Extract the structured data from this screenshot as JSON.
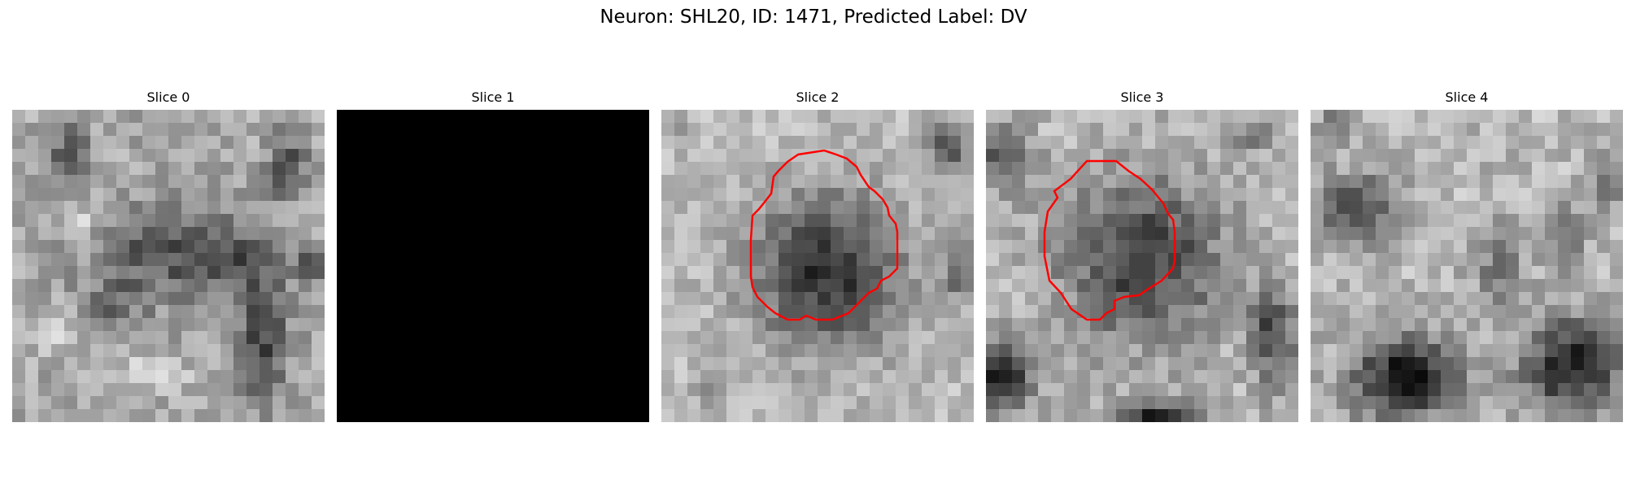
{
  "figure": {
    "title": "Neuron: SHL20, ID: 1471, Predicted Label: DV"
  },
  "panels": [
    {
      "title": "Slice 0",
      "contour": false,
      "blank": false,
      "blobs": [
        [
          0.5,
          0.45,
          0.22,
          0.15,
          0.35
        ],
        [
          0.8,
          0.72,
          0.08,
          0.22,
          0.4
        ],
        [
          0.18,
          0.12,
          0.06,
          0.1,
          0.3
        ],
        [
          0.88,
          0.18,
          0.06,
          0.1,
          0.35
        ],
        [
          0.32,
          0.62,
          0.1,
          0.08,
          0.2
        ],
        [
          0.72,
          0.48,
          0.1,
          0.08,
          0.25
        ],
        [
          0.95,
          0.5,
          0.06,
          0.06,
          0.3
        ],
        [
          0.22,
          0.35,
          0.05,
          0.05,
          -0.2
        ],
        [
          0.12,
          0.7,
          0.08,
          0.06,
          -0.15
        ],
        [
          0.45,
          0.85,
          0.1,
          0.06,
          -0.18
        ]
      ],
      "base": 0.66,
      "noise": 0.13
    },
    {
      "title": "Slice 1",
      "contour": false,
      "blank": true,
      "blobs": [],
      "base": 0.0,
      "noise": 0.0
    },
    {
      "title": "Slice 2",
      "contour": true,
      "blank": false,
      "blobs": [
        [
          0.53,
          0.52,
          0.24,
          0.24,
          0.55
        ],
        [
          0.92,
          0.12,
          0.06,
          0.08,
          0.4
        ],
        [
          0.95,
          0.5,
          0.05,
          0.1,
          0.35
        ],
        [
          0.05,
          0.05,
          0.05,
          0.05,
          0.2
        ],
        [
          0.15,
          0.9,
          0.06,
          0.06,
          0.15
        ]
      ],
      "base": 0.74,
      "noise": 0.11
    },
    {
      "title": "Slice 3",
      "contour": true,
      "blank": false,
      "blobs": [
        [
          0.5,
          0.48,
          0.25,
          0.25,
          0.48
        ],
        [
          0.05,
          0.85,
          0.09,
          0.1,
          0.6
        ],
        [
          0.55,
          0.99,
          0.16,
          0.06,
          0.55
        ],
        [
          0.92,
          0.72,
          0.07,
          0.16,
          0.45
        ],
        [
          0.06,
          0.15,
          0.08,
          0.1,
          0.38
        ],
        [
          0.85,
          0.08,
          0.06,
          0.05,
          0.25
        ]
      ],
      "base": 0.72,
      "noise": 0.13
    },
    {
      "title": "Slice 4",
      "contour": false,
      "blank": false,
      "blobs": [
        [
          0.3,
          0.86,
          0.17,
          0.13,
          0.65
        ],
        [
          0.84,
          0.82,
          0.16,
          0.15,
          0.6
        ],
        [
          0.15,
          0.32,
          0.13,
          0.11,
          0.42
        ],
        [
          0.6,
          0.5,
          0.08,
          0.12,
          0.25
        ],
        [
          0.82,
          0.4,
          0.06,
          0.1,
          0.25
        ],
        [
          0.08,
          0.06,
          0.05,
          0.06,
          0.3
        ],
        [
          0.95,
          0.25,
          0.05,
          0.1,
          0.25
        ]
      ],
      "base": 0.72,
      "noise": 0.13
    }
  ],
  "colors": {
    "contour": "#ff0000",
    "background": "#ffffff"
  }
}
